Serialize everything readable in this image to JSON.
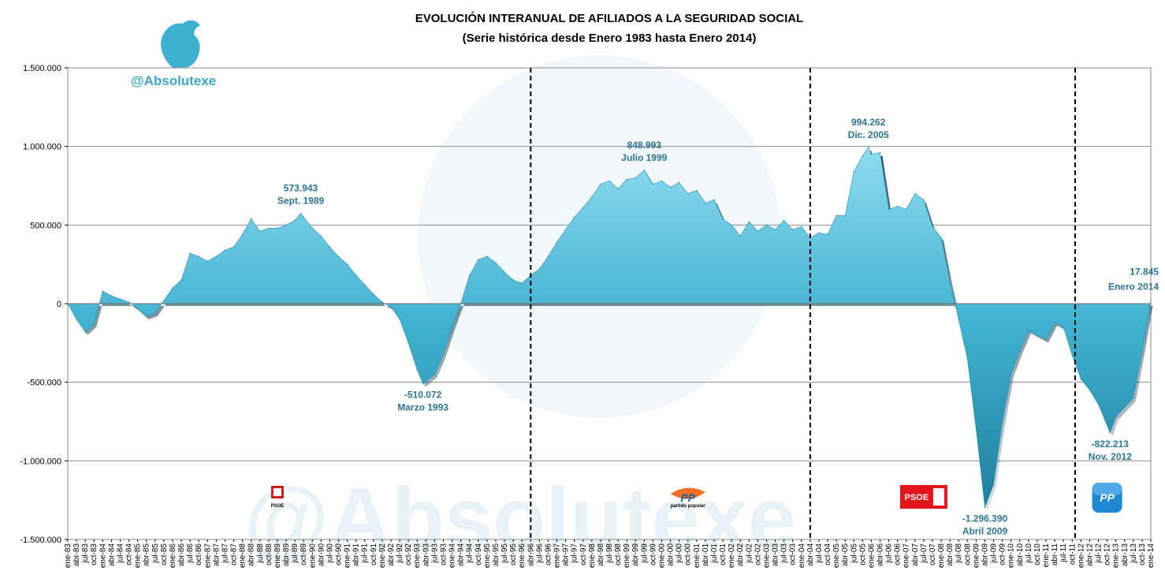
{
  "chart_data": {
    "type": "area",
    "title": "EVOLUCIÓN INTERANUAL DE AFILIADOS A LA SEGURIDAD SOCIAL",
    "subtitle": "(Serie histórica desde Enero 1983 hasta Enero 2014)",
    "brand": "@Absolutexe",
    "watermark": "@Absolutexe",
    "ylim": [
      -1500000,
      1500000
    ],
    "yticks": [
      {
        "value": 1500000,
        "label": "1.500.000"
      },
      {
        "value": 1000000,
        "label": "1.000.000"
      },
      {
        "value": 500000,
        "label": "500.000"
      },
      {
        "value": 0,
        "label": "0"
      },
      {
        "value": -500000,
        "label": "-500.000"
      },
      {
        "value": -1000000,
        "label": "-1.000.000"
      },
      {
        "value": -1500000,
        "label": "-1.500.000"
      }
    ],
    "grid": true,
    "start": "ene-83",
    "end": "ene-14",
    "fill_color": "#3fb1d0",
    "shade_color": "#0c3a4c",
    "xticks": [
      "ene-83",
      "abr-83",
      "jul-83",
      "oct-83",
      "ene-84",
      "abr-84",
      "jul-84",
      "oct-84",
      "ene-85",
      "abr-85",
      "jul-85",
      "oct-85",
      "ene-86",
      "abr-86",
      "jul-86",
      "oct-86",
      "ene-87",
      "abr-87",
      "jul-87",
      "oct-87",
      "ene-88",
      "abr-88",
      "jul-88",
      "oct-88",
      "ene-89",
      "abr-89",
      "jul-89",
      "oct-89",
      "ene-90",
      "abr-90",
      "jul-90",
      "oct-90",
      "ene-91",
      "abr-91",
      "jul-91",
      "oct-91",
      "ene-92",
      "abr-92",
      "jul-92",
      "oct-92",
      "ene-93",
      "abr-93",
      "jul-93",
      "oct-93",
      "ene-94",
      "abr-94",
      "jul-94",
      "oct-94",
      "ene-95",
      "abr-95",
      "jul-95",
      "oct-95",
      "ene-96",
      "abr-96",
      "jul-96",
      "oct-96",
      "ene-97",
      "abr-97",
      "jul-97",
      "oct-97",
      "ene-98",
      "abr-98",
      "jul-98",
      "oct-98",
      "ene-99",
      "abr-99",
      "jul-99",
      "oct-99",
      "ene-00",
      "abr-00",
      "jul-00",
      "oct-00",
      "ene-01",
      "abr-01",
      "jul-01",
      "oct-01",
      "ene-02",
      "abr-02",
      "jul-02",
      "oct-02",
      "ene-03",
      "abr-03",
      "jul-03",
      "oct-03",
      "ene-04",
      "abr-04",
      "jul-04",
      "oct-04",
      "ene-05",
      "abr-05",
      "jul-05",
      "oct-05",
      "ene-06",
      "abr-06",
      "jul-06",
      "oct-06",
      "ene-07",
      "abr-07",
      "jul-07",
      "oct-07",
      "ene-08",
      "abr-08",
      "jul-08",
      "oct-08",
      "ene-09",
      "abr-09",
      "jul-09",
      "oct-09",
      "ene-10",
      "abr-10",
      "jul-10",
      "oct-10",
      "ene-11",
      "abr-11",
      "jul-11",
      "oct-11",
      "ene-12",
      "abr-12",
      "jul-12",
      "oct-12",
      "ene-13",
      "abr-13",
      "jul-13",
      "oct-13",
      "ene-14"
    ],
    "series": [
      {
        "values": [
          {
            "x": "ene-83",
            "y": 0
          },
          {
            "x": "abr-83",
            "y": -100000
          },
          {
            "x": "jul-83",
            "y": -180000
          },
          {
            "x": "oct-83",
            "y": -130000
          },
          {
            "x": "ene-84",
            "y": 80000
          },
          {
            "x": "abr-84",
            "y": 50000
          },
          {
            "x": "jul-84",
            "y": 30000
          },
          {
            "x": "oct-84",
            "y": 10000
          },
          {
            "x": "ene-85",
            "y": -30000
          },
          {
            "x": "abr-85",
            "y": -80000
          },
          {
            "x": "jul-85",
            "y": -60000
          },
          {
            "x": "oct-85",
            "y": 20000
          },
          {
            "x": "ene-86",
            "y": 100000
          },
          {
            "x": "abr-86",
            "y": 150000
          },
          {
            "x": "jul-86",
            "y": 320000
          },
          {
            "x": "oct-86",
            "y": 300000
          },
          {
            "x": "ene-87",
            "y": 270000
          },
          {
            "x": "abr-87",
            "y": 300000
          },
          {
            "x": "jul-87",
            "y": 340000
          },
          {
            "x": "oct-87",
            "y": 360000
          },
          {
            "x": "ene-88",
            "y": 440000
          },
          {
            "x": "abr-88",
            "y": 540000
          },
          {
            "x": "jul-88",
            "y": 460000
          },
          {
            "x": "oct-88",
            "y": 480000
          },
          {
            "x": "ene-89",
            "y": 480000
          },
          {
            "x": "abr-89",
            "y": 500000
          },
          {
            "x": "jul-89",
            "y": 530000
          },
          {
            "x": "sep-89",
            "y": 573943
          },
          {
            "x": "oct-89",
            "y": 550000
          },
          {
            "x": "ene-90",
            "y": 480000
          },
          {
            "x": "abr-90",
            "y": 430000
          },
          {
            "x": "jul-90",
            "y": 360000
          },
          {
            "x": "oct-90",
            "y": 300000
          },
          {
            "x": "ene-91",
            "y": 250000
          },
          {
            "x": "abr-91",
            "y": 180000
          },
          {
            "x": "jul-91",
            "y": 120000
          },
          {
            "x": "oct-91",
            "y": 60000
          },
          {
            "x": "ene-92",
            "y": 10000
          },
          {
            "x": "abr-92",
            "y": -20000
          },
          {
            "x": "jul-92",
            "y": -100000
          },
          {
            "x": "oct-92",
            "y": -250000
          },
          {
            "x": "ene-93",
            "y": -420000
          },
          {
            "x": "mar-93",
            "y": -510072
          },
          {
            "x": "jul-93",
            "y": -450000
          },
          {
            "x": "oct-93",
            "y": -320000
          },
          {
            "x": "ene-94",
            "y": -150000
          },
          {
            "x": "abr-94",
            "y": 0
          },
          {
            "x": "jul-94",
            "y": 180000
          },
          {
            "x": "oct-94",
            "y": 280000
          },
          {
            "x": "ene-95",
            "y": 300000
          },
          {
            "x": "abr-95",
            "y": 260000
          },
          {
            "x": "jul-95",
            "y": 200000
          },
          {
            "x": "oct-95",
            "y": 150000
          },
          {
            "x": "ene-96",
            "y": 130000
          },
          {
            "x": "abr-96",
            "y": 180000
          },
          {
            "x": "jul-96",
            "y": 220000
          },
          {
            "x": "oct-96",
            "y": 300000
          },
          {
            "x": "ene-97",
            "y": 390000
          },
          {
            "x": "abr-97",
            "y": 470000
          },
          {
            "x": "jul-97",
            "y": 550000
          },
          {
            "x": "oct-97",
            "y": 610000
          },
          {
            "x": "ene-98",
            "y": 680000
          },
          {
            "x": "abr-98",
            "y": 760000
          },
          {
            "x": "jul-98",
            "y": 780000
          },
          {
            "x": "oct-98",
            "y": 730000
          },
          {
            "x": "ene-99",
            "y": 790000
          },
          {
            "x": "abr-99",
            "y": 800000
          },
          {
            "x": "jul-99",
            "y": 848993
          },
          {
            "x": "oct-99",
            "y": 760000
          },
          {
            "x": "ene-00",
            "y": 780000
          },
          {
            "x": "abr-00",
            "y": 740000
          },
          {
            "x": "jul-00",
            "y": 770000
          },
          {
            "x": "oct-00",
            "y": 700000
          },
          {
            "x": "ene-01",
            "y": 720000
          },
          {
            "x": "abr-01",
            "y": 640000
          },
          {
            "x": "jul-01",
            "y": 660000
          },
          {
            "x": "oct-01",
            "y": 540000
          },
          {
            "x": "ene-02",
            "y": 500000
          },
          {
            "x": "abr-02",
            "y": 430000
          },
          {
            "x": "jul-02",
            "y": 520000
          },
          {
            "x": "oct-02",
            "y": 460000
          },
          {
            "x": "ene-03",
            "y": 500000
          },
          {
            "x": "abr-03",
            "y": 470000
          },
          {
            "x": "jul-03",
            "y": 530000
          },
          {
            "x": "oct-03",
            "y": 470000
          },
          {
            "x": "ene-04",
            "y": 490000
          },
          {
            "x": "abr-04",
            "y": 420000
          },
          {
            "x": "jul-04",
            "y": 450000
          },
          {
            "x": "oct-04",
            "y": 440000
          },
          {
            "x": "ene-05",
            "y": 560000
          },
          {
            "x": "abr-05",
            "y": 560000
          },
          {
            "x": "jul-05",
            "y": 840000
          },
          {
            "x": "oct-05",
            "y": 940000
          },
          {
            "x": "dic-05",
            "y": 994262
          },
          {
            "x": "ene-06",
            "y": 950000
          },
          {
            "x": "abr-06",
            "y": 960000
          },
          {
            "x": "jul-06",
            "y": 600000
          },
          {
            "x": "oct-06",
            "y": 620000
          },
          {
            "x": "ene-07",
            "y": 600000
          },
          {
            "x": "abr-07",
            "y": 700000
          },
          {
            "x": "jul-07",
            "y": 660000
          },
          {
            "x": "oct-07",
            "y": 490000
          },
          {
            "x": "ene-08",
            "y": 420000
          },
          {
            "x": "abr-08",
            "y": 140000
          },
          {
            "x": "jul-08",
            "y": -100000
          },
          {
            "x": "oct-08",
            "y": -350000
          },
          {
            "x": "ene-09",
            "y": -800000
          },
          {
            "x": "abr-09",
            "y": -1296390
          },
          {
            "x": "jul-09",
            "y": -1150000
          },
          {
            "x": "oct-09",
            "y": -760000
          },
          {
            "x": "ene-10",
            "y": -450000
          },
          {
            "x": "abr-10",
            "y": -300000
          },
          {
            "x": "jul-10",
            "y": -170000
          },
          {
            "x": "oct-10",
            "y": -200000
          },
          {
            "x": "ene-11",
            "y": -230000
          },
          {
            "x": "abr-11",
            "y": -120000
          },
          {
            "x": "jul-11",
            "y": -150000
          },
          {
            "x": "oct-11",
            "y": -330000
          },
          {
            "x": "ene-12",
            "y": -480000
          },
          {
            "x": "abr-12",
            "y": -550000
          },
          {
            "x": "jul-12",
            "y": -640000
          },
          {
            "x": "nov-12",
            "y": -822213
          },
          {
            "x": "ene-13",
            "y": -720000
          },
          {
            "x": "abr-13",
            "y": -660000
          },
          {
            "x": "jul-13",
            "y": -600000
          },
          {
            "x": "oct-13",
            "y": -300000
          },
          {
            "x": "ene-14",
            "y": 17845
          }
        ]
      }
    ],
    "dividers": [
      "abr-96",
      "abr-04",
      "nov-11"
    ],
    "annotations": [
      {
        "x": "sep-89",
        "y": 573943,
        "value": "573.943",
        "date": "Sept. 1989",
        "pos": "above"
      },
      {
        "x": "mar-93",
        "y": -510072,
        "value": "-510.072",
        "date": "Marzo 1993",
        "pos": "below"
      },
      {
        "x": "jul-99",
        "y": 848993,
        "value": "848.993",
        "date": "Julio 1999",
        "pos": "above"
      },
      {
        "x": "dic-05",
        "y": 994262,
        "value": "994.262",
        "date": "Dic. 2005",
        "pos": "above"
      },
      {
        "x": "abr-09",
        "y": -1296390,
        "value": "-1.296.390",
        "date": "Abril 2009",
        "pos": "below"
      },
      {
        "x": "nov-12",
        "y": -822213,
        "value": "-822.213",
        "date": "Nov. 2012",
        "pos": "below"
      },
      {
        "x": "ene-14",
        "y": 17845,
        "value": "17.845",
        "date": "Enero 2014",
        "pos": "above-left"
      }
    ],
    "parties": [
      {
        "name": "psoe",
        "label": "PSOE",
        "x": "ene-89"
      },
      {
        "name": "pp",
        "label": "PP",
        "sub": "partido popular",
        "x": "oct-00"
      },
      {
        "name": "psoe",
        "label": "PSOE",
        "x": "jul-07"
      },
      {
        "name": "pp",
        "label": "PP",
        "x": "oct-12"
      }
    ]
  }
}
